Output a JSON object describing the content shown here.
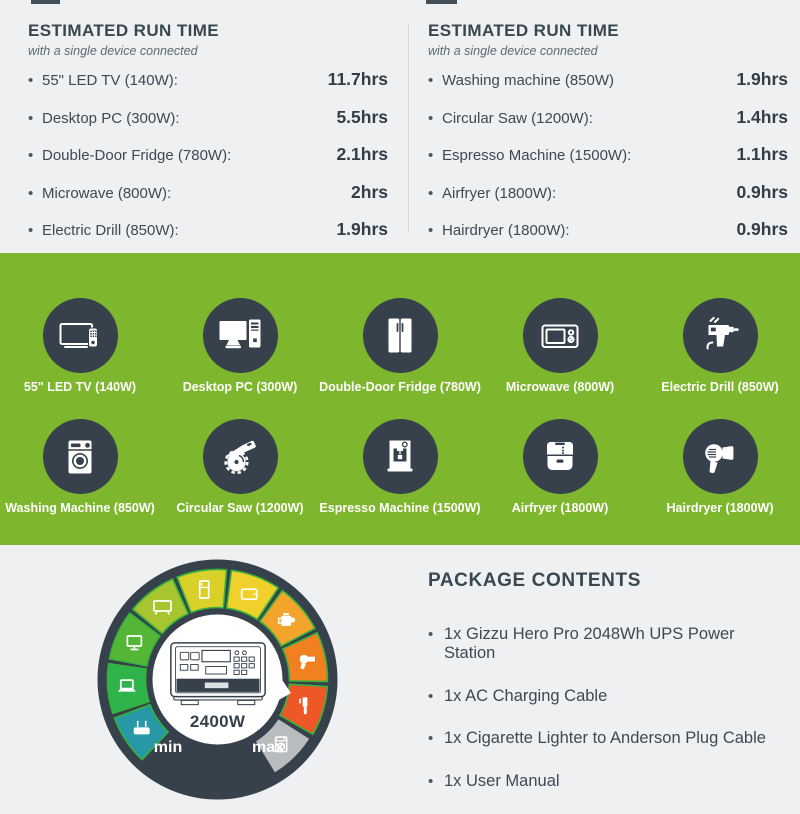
{
  "page": {
    "background": "#eef0f1",
    "accent_green": "#7eb72e",
    "dark": "#36414b"
  },
  "runtime_left": {
    "title": "ESTIMATED RUN TIME",
    "subtitle": "with a single device connected",
    "items": [
      {
        "label": "55\" LED TV (140W):",
        "value": "11.7hrs"
      },
      {
        "label": "Desktop PC (300W):",
        "value": "5.5hrs"
      },
      {
        "label": "Double-Door Fridge (780W):",
        "value": "2.1hrs"
      },
      {
        "label": "Microwave (800W):",
        "value": "2hrs"
      },
      {
        "label": "Electric Drill (850W):",
        "value": "1.9hrs"
      }
    ]
  },
  "runtime_right": {
    "title": "ESTIMATED RUN TIME",
    "subtitle": "with a single device connected",
    "items": [
      {
        "label": "Washing machine (850W)",
        "value": "1.9hrs"
      },
      {
        "label": "Circular Saw (1200W):",
        "value": "1.4hrs"
      },
      {
        "label": "Espresso Machine (1500W):",
        "value": "1.1hrs"
      },
      {
        "label": "Airfryer (1800W):",
        "value": "0.9hrs"
      },
      {
        "label": "Hairdryer (1800W):",
        "value": "0.9hrs"
      }
    ]
  },
  "devices": [
    {
      "label": "55\" LED TV (140W)",
      "icon": "tv-icon"
    },
    {
      "label": "Desktop PC (300W)",
      "icon": "desktop-pc-icon"
    },
    {
      "label": "Double-Door Fridge (780W)",
      "icon": "fridge-icon"
    },
    {
      "label": "Microwave (800W)",
      "icon": "microwave-icon"
    },
    {
      "label": "Electric Drill (850W)",
      "icon": "drill-icon"
    },
    {
      "label": "Washing Machine (850W)",
      "icon": "washing-machine-icon"
    },
    {
      "label": "Circular Saw (1200W)",
      "icon": "circular-saw-icon"
    },
    {
      "label": "Espresso Machine (1500W)",
      "icon": "espresso-machine-icon"
    },
    {
      "label": "Airfryer (1800W)",
      "icon": "airfryer-icon"
    },
    {
      "label": "Hairdryer (1800W)",
      "icon": "hairdryer-icon"
    }
  ],
  "gauge": {
    "center_label": "2400W",
    "min_label": "min",
    "max_label": "max",
    "segments": [
      {
        "icon": "router-icon",
        "color": "#2798a6"
      },
      {
        "icon": "laptop-icon",
        "color": "#2eb44b"
      },
      {
        "icon": "monitor-icon",
        "color": "#53b637"
      },
      {
        "icon": "tv-icon",
        "color": "#a6c52f"
      },
      {
        "icon": "fridge-icon",
        "color": "#d9d02a"
      },
      {
        "icon": "tablet-icon",
        "color": "#f0d12b"
      },
      {
        "icon": "kettle-icon",
        "color": "#f3a42a"
      },
      {
        "icon": "hairdryer-icon",
        "color": "#f08020"
      },
      {
        "icon": "chainsaw-icon",
        "color": "#ee5726"
      },
      {
        "icon": "washing-machine-icon",
        "color": "#b8bcbf"
      }
    ]
  },
  "package": {
    "title": "PACKAGE CONTENTS",
    "items": [
      "1x Gizzu Hero Pro 2048Wh UPS Power Station",
      "1x AC Charging Cable",
      "1x Cigarette Lighter to Anderson Plug Cable",
      "1x User Manual"
    ]
  }
}
